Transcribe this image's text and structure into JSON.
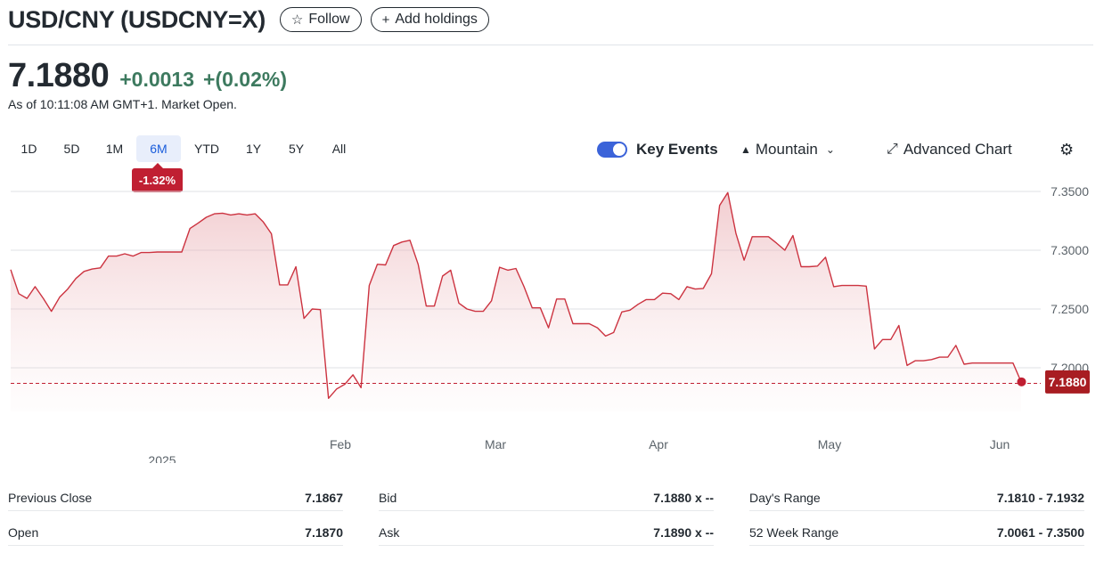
{
  "header": {
    "title": "USD/CNY (USDCNY=X)",
    "follow_label": "Follow",
    "follow_icon": "star-outline-icon",
    "add_holdings_label": "Add holdings",
    "add_icon": "plus-icon"
  },
  "quote": {
    "price": "7.1880",
    "change": "+0.0013",
    "change_pct": "+(0.02%)",
    "as_of": "As of 10:11:08 AM GMT+1. Market Open.",
    "change_color": "#3d7a5f"
  },
  "ranges": [
    "1D",
    "5D",
    "1M",
    "6M",
    "YTD",
    "1Y",
    "5Y",
    "All"
  ],
  "active_range": "6M",
  "range_change_badge": "-1.32%",
  "toolbar": {
    "key_events_label": "Key Events",
    "key_events_on": true,
    "chart_type_label": "Mountain",
    "advanced_chart_label": "Advanced Chart",
    "settings_icon": "gear-icon"
  },
  "chart_data": {
    "type": "area",
    "series": [
      {
        "values": [
          7.2835,
          7.263,
          7.259,
          7.269,
          7.259,
          7.248,
          7.26,
          7.267,
          7.276,
          7.282,
          7.284,
          7.285,
          7.295,
          7.295,
          7.297,
          7.295,
          7.298,
          7.298,
          7.2985,
          7.2985,
          7.2985,
          7.2985,
          7.3185,
          7.323,
          7.328,
          7.331,
          7.3315,
          7.33,
          7.331,
          7.33,
          7.331,
          7.324,
          7.314,
          7.2705,
          7.2705,
          7.286,
          7.242,
          7.25,
          7.2495,
          7.174,
          7.182,
          7.186,
          7.194,
          7.183,
          7.27,
          7.288,
          7.2875,
          7.304,
          7.307,
          7.3085,
          7.288,
          7.2525,
          7.2525,
          7.278,
          7.283,
          7.255,
          7.25,
          7.248,
          7.248,
          7.257,
          7.2855,
          7.283,
          7.2845,
          7.269,
          7.251,
          7.251,
          7.234,
          7.2585,
          7.2585,
          7.2375,
          7.2375,
          7.2375,
          7.234,
          7.227,
          7.23,
          7.2475,
          7.249,
          7.254,
          7.258,
          7.258,
          7.2635,
          7.263,
          7.258,
          7.269,
          7.267,
          7.2675,
          7.28,
          7.338,
          7.349,
          7.3145,
          7.2915,
          7.3115,
          7.3115,
          7.3115,
          7.306,
          7.3,
          7.3125,
          7.286,
          7.286,
          7.2865,
          7.294,
          7.269,
          7.27,
          7.27,
          7.27,
          7.2695,
          7.216,
          7.224,
          7.224,
          7.236,
          7.202,
          7.206,
          7.206,
          7.207,
          7.209,
          7.209,
          7.219,
          7.203,
          7.204,
          7.204,
          7.204,
          7.204,
          7.204,
          7.204,
          7.188
        ]
      }
    ],
    "x_tick_labels": [
      "Feb",
      "Mar",
      "Apr",
      "May",
      "Jun"
    ],
    "x_year_label": "2025",
    "y_ticks": [
      7.35,
      7.3,
      7.25,
      7.2
    ],
    "y_tick_labels": [
      "7.3500",
      "7.3000",
      "7.2500",
      "7.2000"
    ],
    "ylim": [
      7.16,
      7.352
    ],
    "previous_close": 7.1867,
    "last_value_label": "7.1880",
    "line_color": "#cc3340",
    "grid": true
  },
  "stats": [
    [
      {
        "label": "Previous Close",
        "value": "7.1867"
      },
      {
        "label": "Bid",
        "value": "7.1880 x --"
      },
      {
        "label": "Day's Range",
        "value": "7.1810 - 7.1932"
      }
    ],
    [
      {
        "label": "Open",
        "value": "7.1870"
      },
      {
        "label": "Ask",
        "value": "7.1890 x --"
      },
      {
        "label": "52 Week Range",
        "value": "7.0061 - 7.3500"
      }
    ]
  ]
}
